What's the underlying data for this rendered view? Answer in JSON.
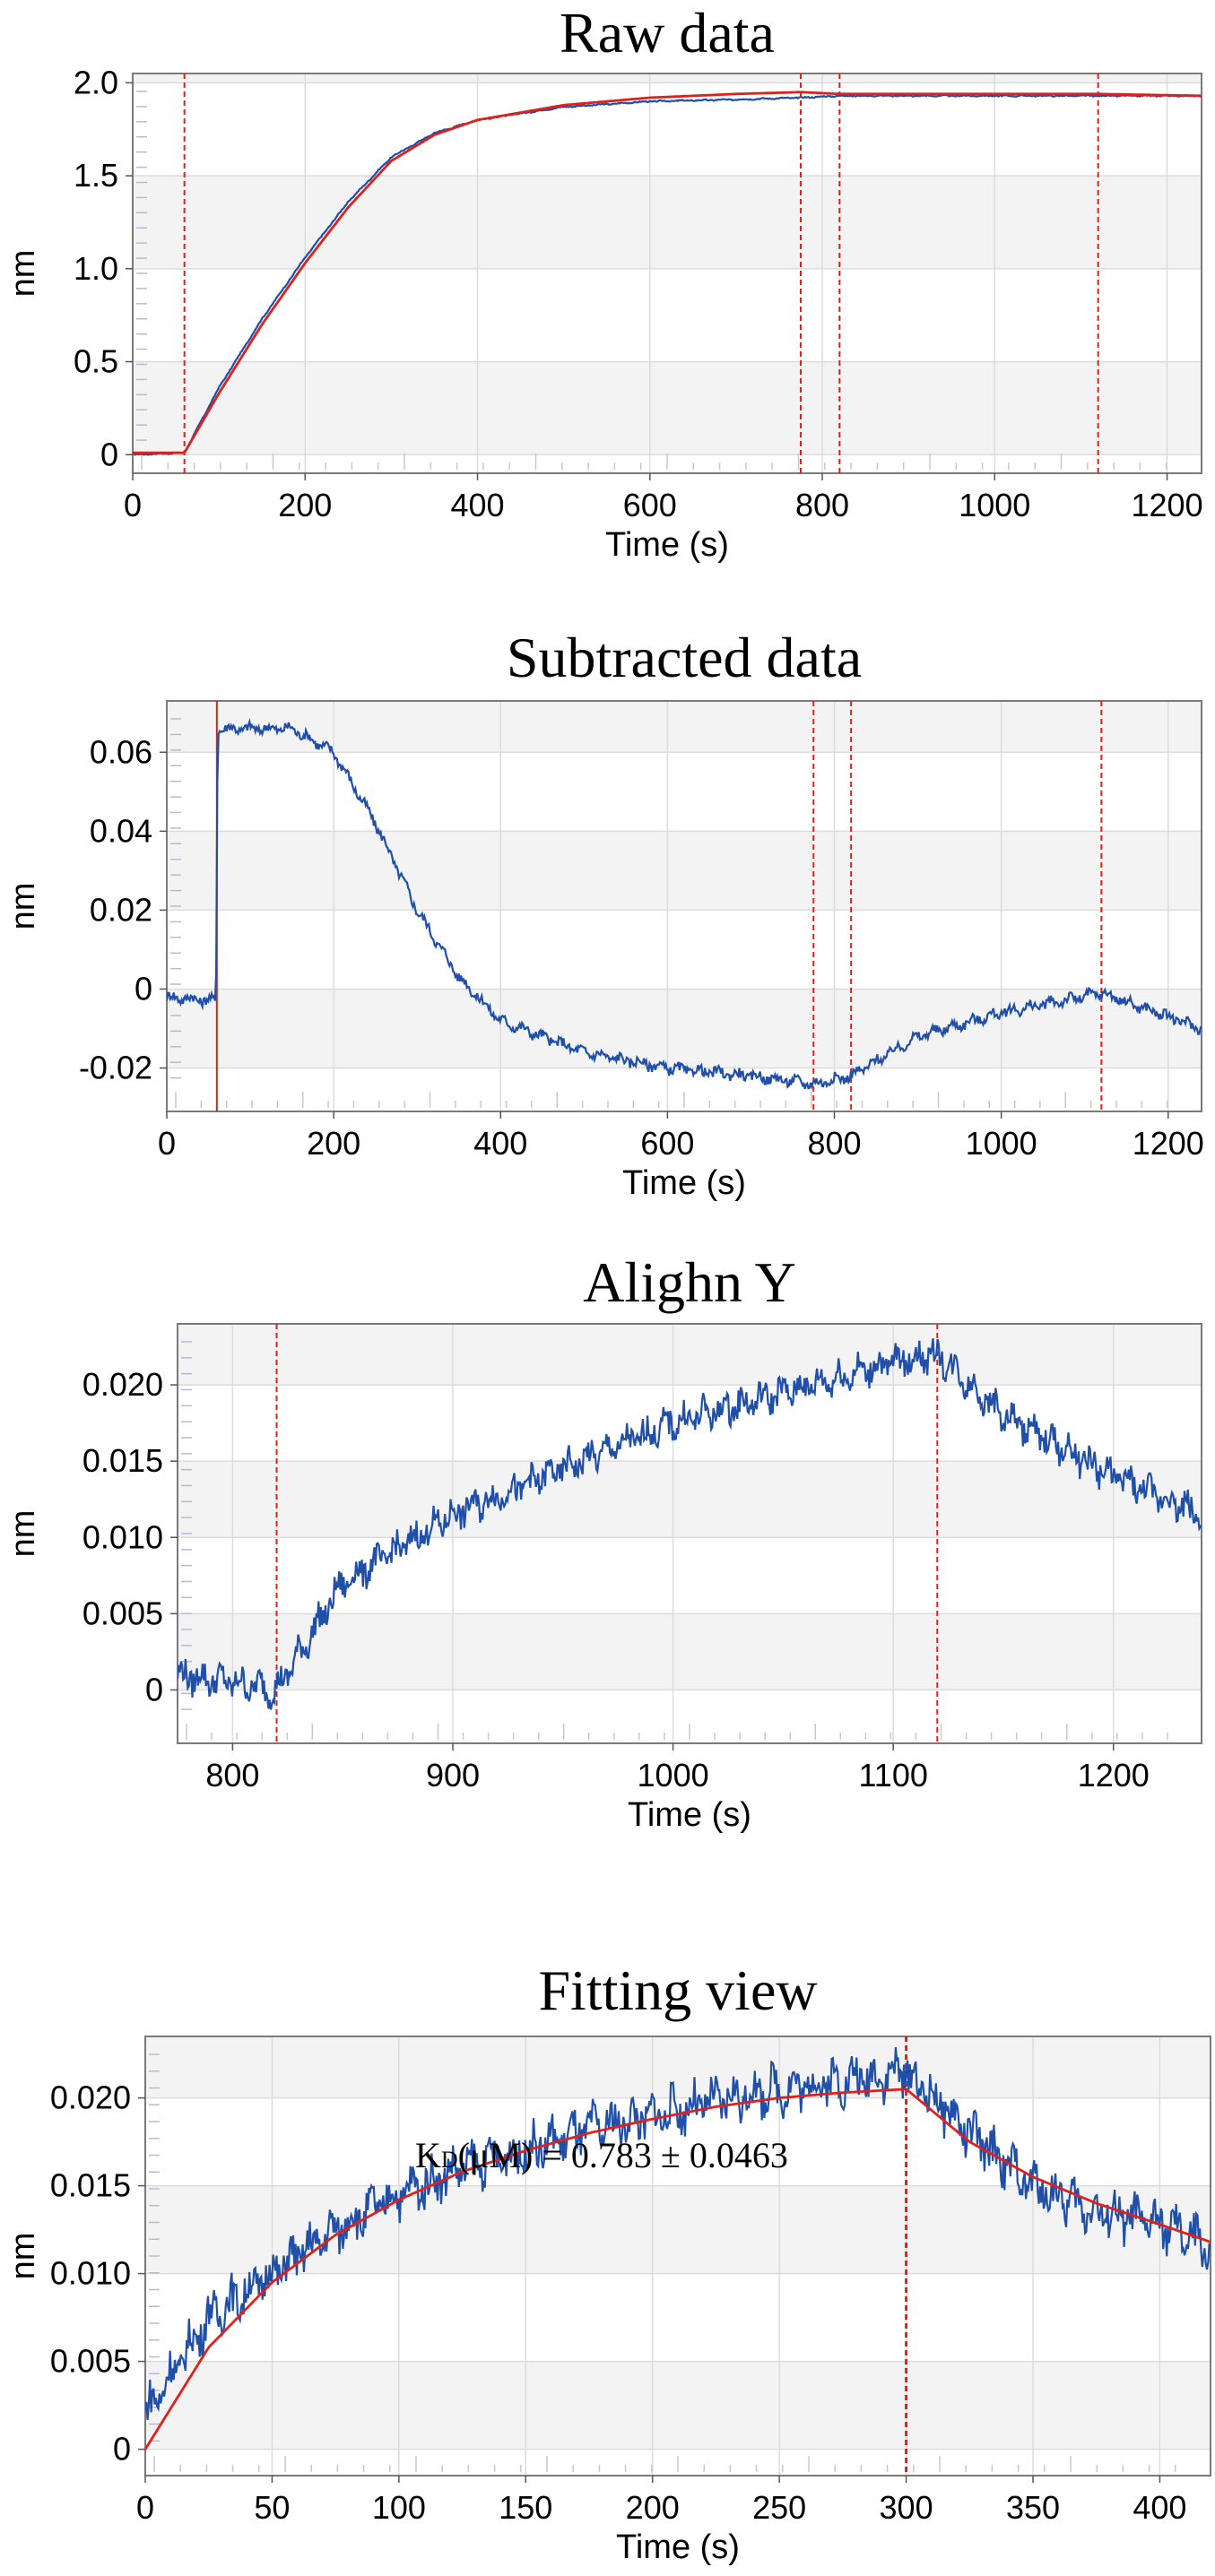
{
  "chart_data": [
    {
      "type": "line",
      "title": "Raw data",
      "xlabel": "Time (s)",
      "ylabel": "nm",
      "xlim": [
        0,
        1240
      ],
      "ylim": [
        -0.1,
        2.05
      ],
      "xticks": [
        0,
        200,
        400,
        600,
        800,
        1000,
        1200
      ],
      "yticks": [
        0,
        0.5,
        1.0,
        1.5,
        2.0
      ],
      "ytick_labels": [
        "0",
        "0.5",
        "1.0",
        "1.5",
        "2.0"
      ],
      "step_markers": [
        60,
        775,
        820,
        1120
      ],
      "grid": true,
      "series": [
        {
          "color": "#1f4fa8",
          "x": [
            0,
            60,
            100,
            150,
            200,
            250,
            300,
            350,
            400,
            500,
            600,
            700,
            775,
            820,
            900,
            1000,
            1120,
            1240
          ],
          "y": [
            0,
            0.01,
            0.36,
            0.73,
            1.06,
            1.36,
            1.6,
            1.73,
            1.8,
            1.87,
            1.9,
            1.91,
            1.92,
            1.93,
            1.93,
            1.93,
            1.93,
            1.93
          ]
        },
        {
          "color": "#e0201a",
          "x": [
            0,
            60,
            100,
            150,
            200,
            250,
            300,
            350,
            400,
            500,
            600,
            700,
            775,
            820,
            900,
            1000,
            1120,
            1240
          ],
          "y": [
            0.01,
            0.01,
            0.33,
            0.7,
            1.03,
            1.33,
            1.58,
            1.72,
            1.8,
            1.88,
            1.92,
            1.94,
            1.95,
            1.94,
            1.94,
            1.94,
            1.94,
            1.93
          ]
        }
      ]
    },
    {
      "type": "line",
      "title": "Subtracted data",
      "xlabel": "Time (s)",
      "ylabel": "nm",
      "xlim": [
        0,
        1240
      ],
      "ylim": [
        -0.031,
        0.073
      ],
      "xticks": [
        0,
        200,
        400,
        600,
        800,
        1000,
        1200
      ],
      "yticks": [
        -0.02,
        0,
        0.02,
        0.04,
        0.06
      ],
      "ytick_labels": [
        "-0.02",
        "0",
        "0.02",
        "0.04",
        "0.06"
      ],
      "step_markers": [
        60,
        775,
        820,
        1120
      ],
      "grid": true,
      "series": [
        {
          "color": "#1f4fa8",
          "x": [
            0,
            59,
            61,
            100,
            150,
            200,
            250,
            300,
            350,
            400,
            500,
            600,
            700,
            775,
            820,
            900,
            1000,
            1120,
            1240
          ],
          "y": [
            -0.002,
            -0.003,
            0.066,
            0.066,
            0.066,
            0.06,
            0.042,
            0.02,
            0.003,
            -0.008,
            -0.016,
            -0.02,
            -0.022,
            -0.024,
            -0.022,
            -0.012,
            -0.006,
            -0.001,
            -0.01
          ]
        }
      ]
    },
    {
      "type": "line",
      "title": "Alighn Y",
      "xlabel": "Time (s)",
      "ylabel": "nm",
      "xlim": [
        775,
        1240
      ],
      "ylim": [
        -0.0035,
        0.024
      ],
      "xticks": [
        800,
        900,
        1000,
        1100,
        1200
      ],
      "yticks": [
        0,
        0.005,
        0.01,
        0.015,
        0.02
      ],
      "ytick_labels": [
        "0",
        "0.005",
        "0.010",
        "0.015",
        "0.020"
      ],
      "step_markers": [
        820,
        1120
      ],
      "grid": true,
      "series": [
        {
          "color": "#1f4fa8",
          "x": [
            775,
            800,
            820,
            850,
            900,
            950,
            1000,
            1050,
            1100,
            1120,
            1150,
            1200,
            1240
          ],
          "y": [
            0.001,
            0.0005,
            0.0,
            0.007,
            0.0115,
            0.0145,
            0.0175,
            0.0195,
            0.0215,
            0.022,
            0.018,
            0.014,
            0.0115
          ]
        }
      ]
    },
    {
      "type": "line",
      "title": "Fitting view",
      "xlabel": "Time (s)",
      "ylabel": "nm",
      "xlim": [
        0,
        420
      ],
      "ylim": [
        -0.0015,
        0.0235
      ],
      "xticks": [
        0,
        50,
        100,
        150,
        200,
        250,
        300,
        350,
        400
      ],
      "yticks": [
        0,
        0.005,
        0.01,
        0.015,
        0.02
      ],
      "ytick_labels": [
        "0",
        "0.005",
        "0.010",
        "0.015",
        "0.020"
      ],
      "step_markers": [
        300
      ],
      "grid": true,
      "annotation": {
        "main": "K",
        "sub": "D",
        "rest": "(μM) = 0.783 ± 0.0463"
      },
      "series": [
        {
          "color": "#1f4fa8",
          "x": [
            0,
            25,
            50,
            75,
            100,
            125,
            150,
            175,
            200,
            225,
            250,
            275,
            300,
            325,
            350,
            375,
            400,
            420
          ],
          "y": [
            0.002,
            0.0075,
            0.01,
            0.0125,
            0.0145,
            0.016,
            0.017,
            0.0182,
            0.019,
            0.0198,
            0.0205,
            0.021,
            0.0215,
            0.018,
            0.015,
            0.0135,
            0.0128,
            0.0115
          ]
        },
        {
          "color": "#e0201a",
          "x": [
            0,
            25,
            50,
            75,
            100,
            125,
            150,
            175,
            200,
            225,
            250,
            275,
            300,
            325,
            350,
            375,
            400,
            420
          ],
          "y": [
            0.0,
            0.0058,
            0.0095,
            0.0122,
            0.0142,
            0.0158,
            0.017,
            0.018,
            0.0188,
            0.0195,
            0.02,
            0.0203,
            0.0205,
            0.0175,
            0.0155,
            0.014,
            0.0128,
            0.0118
          ]
        }
      ]
    }
  ]
}
